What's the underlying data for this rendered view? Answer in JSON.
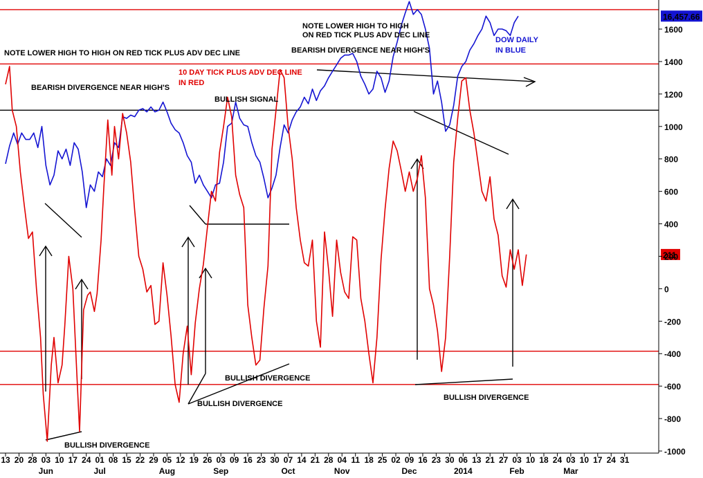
{
  "chart_data": {
    "type": "line",
    "y_axis": {
      "ticks": [
        1600,
        1400,
        1200,
        1000,
        800,
        600,
        400,
        200,
        0,
        -200,
        -400,
        -600,
        -800,
        -1000
      ],
      "ylim": [
        -1000,
        1800
      ]
    },
    "x_axis": {
      "day_ticks": [
        "13",
        "20",
        "28",
        "03",
        "10",
        "17",
        "24",
        "01",
        "08",
        "15",
        "22",
        "29",
        "05",
        "12",
        "19",
        "26",
        "03",
        "09",
        "16",
        "23",
        "30",
        "07",
        "14",
        "21",
        "28",
        "04",
        "11",
        "18",
        "25",
        "02",
        "09",
        "16",
        "23",
        "30",
        "06",
        "13",
        "21",
        "27",
        "03",
        "10",
        "18",
        "24",
        "03",
        "10",
        "17",
        "24",
        "31"
      ],
      "month_labels": [
        {
          "label": "Jun",
          "at": 3
        },
        {
          "label": "Jul",
          "at": 7
        },
        {
          "label": "Aug",
          "at": 12
        },
        {
          "label": "Sep",
          "at": 16
        },
        {
          "label": "Oct",
          "at": 21
        },
        {
          "label": "Nov",
          "at": 25
        },
        {
          "label": "Dec",
          "at": 30
        },
        {
          "label": "2014",
          "at": 34
        },
        {
          "label": "Feb",
          "at": 38
        },
        {
          "label": "Mar",
          "at": 42
        }
      ]
    },
    "horizontal_lines": [
      {
        "value": 1720,
        "color": "#e00000"
      },
      {
        "value": 1385,
        "color": "#e00000"
      },
      {
        "value": 1100,
        "color": "#000000"
      },
      {
        "value": -385,
        "color": "#e00000"
      },
      {
        "value": -590,
        "color": "#e00000"
      }
    ],
    "series": [
      {
        "name": "DOW DAILY IN BLUE",
        "color": "#1414d2",
        "last_value_label": "16,457.66",
        "points": [
          [
            0,
            770
          ],
          [
            0.3,
            880
          ],
          [
            0.6,
            960
          ],
          [
            0.9,
            890
          ],
          [
            1.2,
            960
          ],
          [
            1.5,
            920
          ],
          [
            1.8,
            920
          ],
          [
            2.1,
            960
          ],
          [
            2.4,
            870
          ],
          [
            2.7,
            1000
          ],
          [
            3.0,
            760
          ],
          [
            3.3,
            640
          ],
          [
            3.6,
            700
          ],
          [
            3.9,
            850
          ],
          [
            4.2,
            800
          ],
          [
            4.5,
            860
          ],
          [
            4.8,
            760
          ],
          [
            5.1,
            900
          ],
          [
            5.4,
            860
          ],
          [
            5.7,
            720
          ],
          [
            6.0,
            500
          ],
          [
            6.3,
            640
          ],
          [
            6.6,
            600
          ],
          [
            6.9,
            720
          ],
          [
            7.2,
            690
          ],
          [
            7.5,
            800
          ],
          [
            7.8,
            760
          ],
          [
            8.1,
            900
          ],
          [
            8.4,
            870
          ],
          [
            8.7,
            1060
          ],
          [
            9.0,
            1050
          ],
          [
            9.3,
            1070
          ],
          [
            9.6,
            1060
          ],
          [
            9.9,
            1100
          ],
          [
            10.2,
            1110
          ],
          [
            10.5,
            1090
          ],
          [
            10.8,
            1120
          ],
          [
            11.1,
            1090
          ],
          [
            11.4,
            1100
          ],
          [
            11.7,
            1150
          ],
          [
            12.0,
            1090
          ],
          [
            12.3,
            1020
          ],
          [
            12.6,
            980
          ],
          [
            12.9,
            960
          ],
          [
            13.2,
            900
          ],
          [
            13.5,
            820
          ],
          [
            13.8,
            780
          ],
          [
            14.1,
            650
          ],
          [
            14.4,
            700
          ],
          [
            14.7,
            640
          ],
          [
            15.0,
            600
          ],
          [
            15.3,
            560
          ],
          [
            15.6,
            640
          ],
          [
            15.9,
            650
          ],
          [
            16.2,
            780
          ],
          [
            16.5,
            1000
          ],
          [
            16.8,
            1020
          ],
          [
            17.1,
            1150
          ],
          [
            17.4,
            1050
          ],
          [
            17.7,
            1010
          ],
          [
            18.0,
            1000
          ],
          [
            18.3,
            900
          ],
          [
            18.6,
            820
          ],
          [
            18.9,
            780
          ],
          [
            19.2,
            680
          ],
          [
            19.5,
            560
          ],
          [
            19.8,
            620
          ],
          [
            20.1,
            700
          ],
          [
            20.4,
            870
          ],
          [
            20.7,
            1010
          ],
          [
            21.0,
            960
          ],
          [
            21.3,
            1040
          ],
          [
            21.6,
            1090
          ],
          [
            21.9,
            1120
          ],
          [
            22.2,
            1180
          ],
          [
            22.5,
            1140
          ],
          [
            22.8,
            1230
          ],
          [
            23.1,
            1160
          ],
          [
            23.4,
            1220
          ],
          [
            23.7,
            1250
          ],
          [
            24.0,
            1300
          ],
          [
            24.3,
            1340
          ],
          [
            24.6,
            1380
          ],
          [
            24.9,
            1420
          ],
          [
            25.2,
            1440
          ],
          [
            25.5,
            1440
          ],
          [
            25.8,
            1450
          ],
          [
            26.1,
            1400
          ],
          [
            26.4,
            1310
          ],
          [
            26.7,
            1260
          ],
          [
            27.0,
            1200
          ],
          [
            27.3,
            1230
          ],
          [
            27.6,
            1340
          ],
          [
            27.9,
            1300
          ],
          [
            28.2,
            1210
          ],
          [
            28.5,
            1280
          ],
          [
            28.8,
            1430
          ],
          [
            29.1,
            1520
          ],
          [
            29.4,
            1620
          ],
          [
            29.7,
            1700
          ],
          [
            30.0,
            1770
          ],
          [
            30.3,
            1690
          ],
          [
            30.6,
            1720
          ],
          [
            30.9,
            1690
          ],
          [
            31.2,
            1600
          ],
          [
            31.5,
            1480
          ],
          [
            31.8,
            1200
          ],
          [
            32.1,
            1280
          ],
          [
            32.4,
            1150
          ],
          [
            32.7,
            970
          ],
          [
            33.0,
            1010
          ],
          [
            33.3,
            1130
          ],
          [
            33.6,
            1310
          ],
          [
            33.9,
            1370
          ],
          [
            34.2,
            1400
          ],
          [
            34.5,
            1470
          ],
          [
            34.8,
            1510
          ],
          [
            35.1,
            1560
          ],
          [
            35.4,
            1600
          ],
          [
            35.7,
            1680
          ],
          [
            36.0,
            1640
          ],
          [
            36.3,
            1560
          ],
          [
            36.6,
            1600
          ],
          [
            36.9,
            1600
          ],
          [
            37.2,
            1590
          ],
          [
            37.5,
            1560
          ],
          [
            37.8,
            1640
          ],
          [
            38.1,
            1680
          ]
        ]
      },
      {
        "name": "10 DAY TICK PLUS ADV DEC LINE IN RED",
        "color": "#e00000",
        "last_value_label": "211",
        "points": [
          [
            0,
            1260
          ],
          [
            0.3,
            1370
          ],
          [
            0.5,
            1100
          ],
          [
            0.8,
            1000
          ],
          [
            1.1,
            720
          ],
          [
            1.4,
            510
          ],
          [
            1.7,
            310
          ],
          [
            2.0,
            350
          ],
          [
            2.3,
            0
          ],
          [
            2.6,
            -300
          ],
          [
            2.8,
            -650
          ],
          [
            3.1,
            -940
          ],
          [
            3.4,
            -470
          ],
          [
            3.6,
            -300
          ],
          [
            3.9,
            -580
          ],
          [
            4.2,
            -470
          ],
          [
            4.4,
            -230
          ],
          [
            4.7,
            200
          ],
          [
            5.0,
            0
          ],
          [
            5.3,
            -530
          ],
          [
            5.5,
            -880
          ],
          [
            5.8,
            -130
          ],
          [
            6.1,
            -40
          ],
          [
            6.3,
            -20
          ],
          [
            6.6,
            -140
          ],
          [
            6.8,
            -30
          ],
          [
            7.1,
            300
          ],
          [
            7.3,
            620
          ],
          [
            7.6,
            1040
          ],
          [
            7.9,
            700
          ],
          [
            8.1,
            1000
          ],
          [
            8.4,
            800
          ],
          [
            8.7,
            1080
          ],
          [
            9.0,
            960
          ],
          [
            9.3,
            780
          ],
          [
            9.6,
            480
          ],
          [
            9.9,
            200
          ],
          [
            10.2,
            120
          ],
          [
            10.5,
            -20
          ],
          [
            10.8,
            20
          ],
          [
            11.1,
            -220
          ],
          [
            11.4,
            -200
          ],
          [
            11.7,
            160
          ],
          [
            12.0,
            -40
          ],
          [
            12.3,
            -290
          ],
          [
            12.6,
            -590
          ],
          [
            12.9,
            -700
          ],
          [
            13.2,
            -400
          ],
          [
            13.5,
            -230
          ],
          [
            13.8,
            -530
          ],
          [
            14.1,
            -210
          ],
          [
            14.4,
            0
          ],
          [
            14.7,
            150
          ],
          [
            15.0,
            380
          ],
          [
            15.3,
            600
          ],
          [
            15.6,
            540
          ],
          [
            15.9,
            840
          ],
          [
            16.2,
            1000
          ],
          [
            16.5,
            1180
          ],
          [
            16.8,
            1060
          ],
          [
            17.1,
            700
          ],
          [
            17.4,
            580
          ],
          [
            17.7,
            500
          ],
          [
            18.0,
            -100
          ],
          [
            18.3,
            -300
          ],
          [
            18.6,
            -470
          ],
          [
            18.9,
            -440
          ],
          [
            19.2,
            -120
          ],
          [
            19.5,
            140
          ],
          [
            19.8,
            860
          ],
          [
            20.1,
            1100
          ],
          [
            20.4,
            1350
          ],
          [
            20.7,
            1300
          ],
          [
            21.0,
            1000
          ],
          [
            21.3,
            800
          ],
          [
            21.6,
            500
          ],
          [
            21.9,
            300
          ],
          [
            22.2,
            160
          ],
          [
            22.5,
            140
          ],
          [
            22.8,
            300
          ],
          [
            23.1,
            -200
          ],
          [
            23.4,
            -360
          ],
          [
            23.7,
            350
          ],
          [
            24.0,
            120
          ],
          [
            24.3,
            -170
          ],
          [
            24.6,
            300
          ],
          [
            24.9,
            100
          ],
          [
            25.2,
            -20
          ],
          [
            25.5,
            -60
          ],
          [
            25.8,
            320
          ],
          [
            26.1,
            300
          ],
          [
            26.4,
            -60
          ],
          [
            26.7,
            -200
          ],
          [
            27.0,
            -400
          ],
          [
            27.3,
            -580
          ],
          [
            27.6,
            -300
          ],
          [
            27.9,
            180
          ],
          [
            28.2,
            490
          ],
          [
            28.5,
            740
          ],
          [
            28.8,
            910
          ],
          [
            29.1,
            850
          ],
          [
            29.4,
            730
          ],
          [
            29.7,
            600
          ],
          [
            30.0,
            720
          ],
          [
            30.3,
            600
          ],
          [
            30.6,
            680
          ],
          [
            30.9,
            820
          ],
          [
            31.2,
            560
          ],
          [
            31.5,
            0
          ],
          [
            31.8,
            -100
          ],
          [
            32.1,
            -260
          ],
          [
            32.4,
            -510
          ],
          [
            32.7,
            -300
          ],
          [
            33.0,
            200
          ],
          [
            33.3,
            780
          ],
          [
            33.6,
            1050
          ],
          [
            33.9,
            1280
          ],
          [
            34.2,
            1300
          ],
          [
            34.5,
            1100
          ],
          [
            34.8,
            960
          ],
          [
            35.1,
            780
          ],
          [
            35.4,
            600
          ],
          [
            35.7,
            540
          ],
          [
            36.0,
            690
          ],
          [
            36.3,
            430
          ],
          [
            36.6,
            330
          ],
          [
            36.9,
            80
          ],
          [
            37.2,
            10
          ],
          [
            37.5,
            240
          ],
          [
            37.8,
            120
          ],
          [
            38.1,
            240
          ],
          [
            38.4,
            20
          ],
          [
            38.7,
            211
          ]
        ]
      }
    ],
    "annotations": [
      {
        "text": "NOTE LOWER HIGH TO HIGH ON RED TICK PLUS ADV DEC LINE",
        "color": "#000000"
      },
      {
        "text": "BEARISH DIVERGENCE NEAR HIGH'S",
        "color": "#000000"
      },
      {
        "text": "BULLISH SIGNAL",
        "color": "#000000"
      },
      {
        "text": "10 DAY TICK PLUS ADV DEC LINE",
        "color": "#e00000"
      },
      {
        "text": "IN RED",
        "color": "#e00000"
      },
      {
        "text": "NOTE LOWER HIGH TO HIGH",
        "color": "#000000"
      },
      {
        "text": "ON RED TICK PLUS ADV DEC LINE",
        "color": "#000000"
      },
      {
        "text": "BEARISH DIVERGENCE NEAR HIGH'S",
        "color": "#000000"
      },
      {
        "text": "DOW DAILY",
        "color": "#1414d2"
      },
      {
        "text": "IN BLUE",
        "color": "#1414d2"
      },
      {
        "text": "BULLISH DIVERGENCE",
        "color": "#000000"
      },
      {
        "text": "BULLISH DIVERGENCE",
        "color": "#000000"
      },
      {
        "text": "BULLISH DIVERGENCE",
        "color": "#000000"
      },
      {
        "text": "BULLISH DIVERGENCE",
        "color": "#000000"
      }
    ]
  }
}
